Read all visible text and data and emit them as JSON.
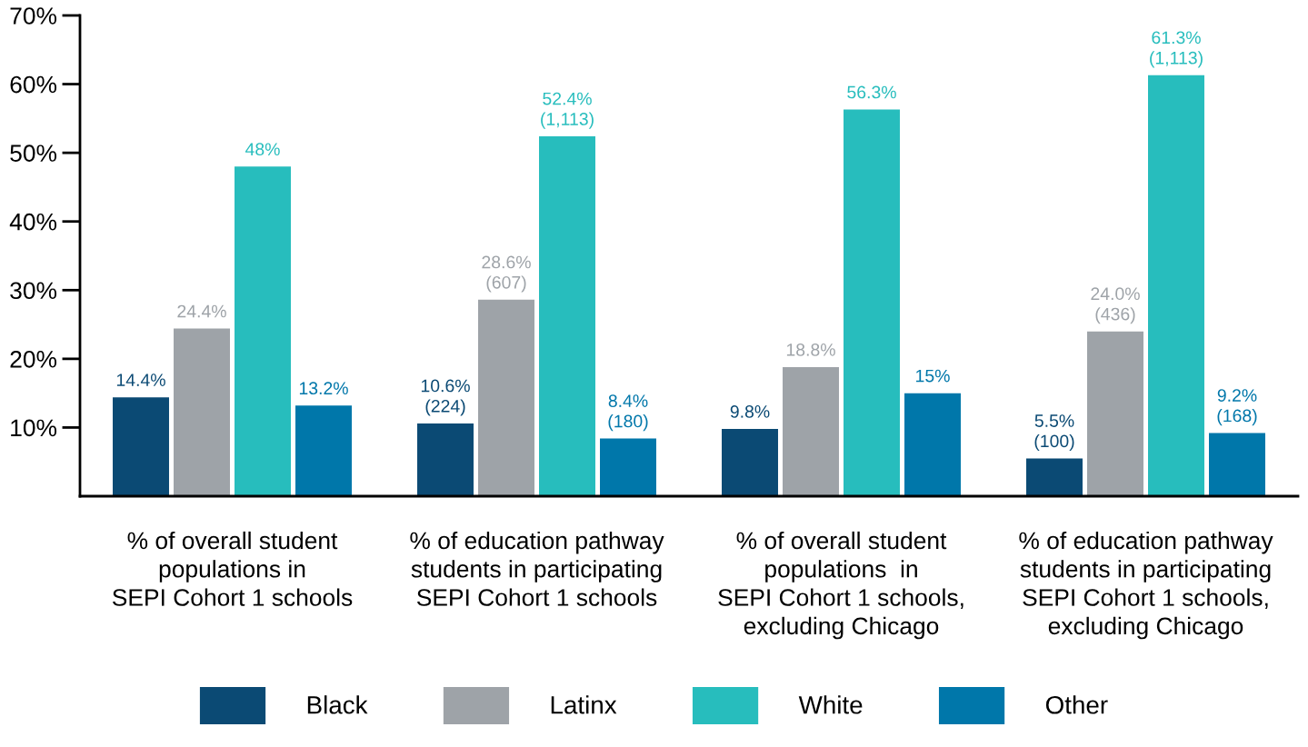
{
  "chart_data": {
    "type": "bar",
    "categories": [
      "% of overall student\npopulations in\nSEPI Cohort 1 schools",
      "% of education pathway\nstudents in participating\nSEPI Cohort 1 schools",
      "% of overall student\npopulations  in\nSEPI Cohort 1 schools,\nexcluding Chicago",
      "% of education pathway\nstudents in participating\nSEPI Cohort 1 schools,\nexcluding Chicago"
    ],
    "series": [
      {
        "name": "Black",
        "color": "#0b4a74",
        "values": [
          14.4,
          10.6,
          9.8,
          5.5
        ],
        "value_labels": [
          "14.4%",
          "10.6%\n(224)",
          "9.8%",
          "5.5%\n(100)"
        ]
      },
      {
        "name": "Latinx",
        "color": "#9ea3a8",
        "values": [
          24.4,
          28.6,
          18.8,
          24.0
        ],
        "value_labels": [
          "24.4%",
          "28.6%\n(607)",
          "18.8%",
          "24.0%\n(436)"
        ]
      },
      {
        "name": "White",
        "color": "#27bdbd",
        "values": [
          48,
          52.4,
          56.3,
          61.3
        ],
        "value_labels": [
          "48%",
          "52.4%\n(1,113)",
          "56.3%",
          "61.3%\n(1,113)"
        ]
      },
      {
        "name": "Other",
        "color": "#0077aa",
        "values": [
          13.2,
          8.4,
          15,
          9.2
        ],
        "value_labels": [
          "13.2%",
          "8.4%\n(180)",
          "15%",
          "9.2%\n(168)"
        ]
      }
    ],
    "ylim": [
      0,
      70
    ],
    "yticks": [
      {
        "value": 10,
        "label": "10%"
      },
      {
        "value": 20,
        "label": "20%"
      },
      {
        "value": 30,
        "label": "30%"
      },
      {
        "value": 40,
        "label": "40%"
      },
      {
        "value": 50,
        "label": "50%"
      },
      {
        "value": 60,
        "label": "60%"
      },
      {
        "value": 70,
        "label": "70%"
      }
    ],
    "grid": false,
    "legend": "bottom"
  }
}
